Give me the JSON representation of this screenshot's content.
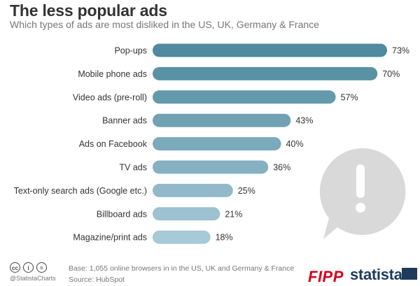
{
  "header": {
    "title": "The less popular ads",
    "subtitle": "Which types of ads are most disliked in the US, UK, Germany & France"
  },
  "chart_data": {
    "type": "bar",
    "orientation": "horizontal",
    "title": "The less popular ads",
    "subtitle": "Which types of ads are most disliked in the US, UK, Germany & France",
    "categories": [
      "Pop-ups",
      "Mobile phone ads",
      "Video ads (pre-roll)",
      "Banner ads",
      "Ads on Facebook",
      "TV ads",
      "Text-only search ads (Google etc.)",
      "Billboard ads",
      "Magazine/print ads"
    ],
    "values": [
      73,
      70,
      57,
      43,
      40,
      36,
      25,
      21,
      18
    ],
    "value_labels": [
      "73%",
      "70%",
      "57%",
      "43%",
      "40%",
      "36%",
      "25%",
      "21%",
      "18%"
    ],
    "unit": "%",
    "xlim": [
      0,
      73
    ],
    "grid": false,
    "legend": "none",
    "colors": {
      "bar_top": "#4f8a9e",
      "bar_bottom": "#a7c9d8"
    }
  },
  "decoration": {
    "icon": "exclamation-speech-bubble-icon",
    "color": "#d9d9d9"
  },
  "footer": {
    "license_icons": [
      "cc",
      "i",
      "="
    ],
    "handle": "@StatistaCharts",
    "base_note": "Base: 1,055 online browsers in in the US, UK and Germany & France",
    "source_note": "Source: HubSpot",
    "brand1": "FIPP",
    "brand2": "statista",
    "colors": {
      "fipp": "#d6001c",
      "statista": "#1f3b5c"
    }
  }
}
